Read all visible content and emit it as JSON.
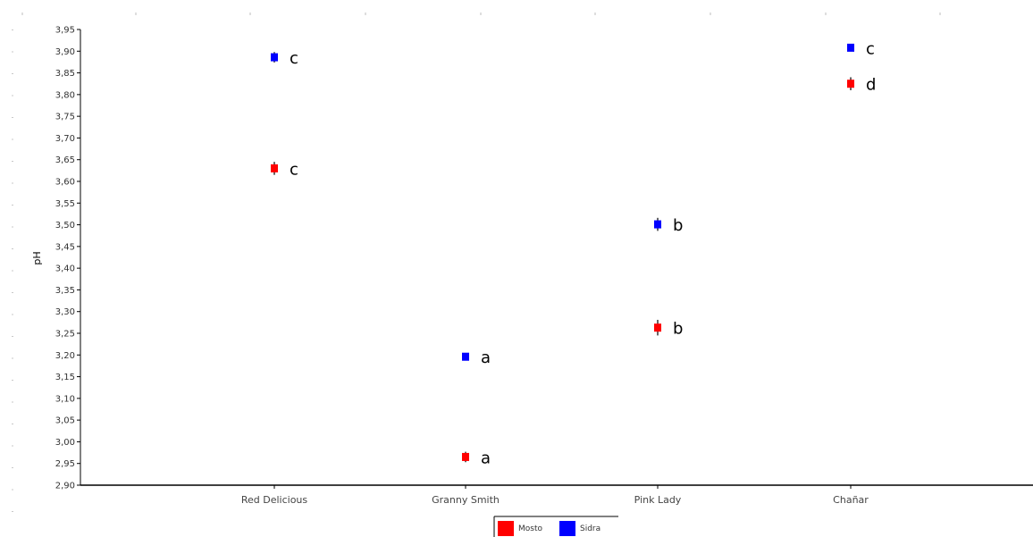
{
  "chart_data": {
    "type": "scatter",
    "title": "",
    "xlabel": "",
    "ylabel": "pH",
    "categories": [
      "Red Delicious",
      "Granny Smith",
      "Pink Lady",
      "Chañar"
    ],
    "ylim": [
      2.9,
      3.95
    ],
    "ytick_step": 0.05,
    "ytick_labels": [
      "2,90",
      "2,95",
      "3,00",
      "3,05",
      "3,10",
      "3,15",
      "3,20",
      "3,25",
      "3,30",
      "3,35",
      "3,40",
      "3,45",
      "3,50",
      "3,55",
      "3,60",
      "3,65",
      "3,70",
      "3,75",
      "3,80",
      "3,85",
      "3,90",
      "3,95"
    ],
    "grid": false,
    "legend_position": "bottom-center",
    "series": [
      {
        "name": "Mosto",
        "color": "#ff0000",
        "values": [
          3.63,
          2.965,
          3.263,
          3.825
        ],
        "errors": [
          0.015,
          0.012,
          0.018,
          0.015
        ],
        "labels": [
          "c",
          "a",
          "b",
          "d"
        ]
      },
      {
        "name": "Sidra",
        "color": "#0000ff",
        "values": [
          3.886,
          3.196,
          3.501,
          3.908
        ],
        "errors": [
          0.012,
          0.008,
          0.015,
          0.006
        ],
        "labels": [
          "c",
          "a",
          "b",
          "c"
        ]
      }
    ]
  }
}
